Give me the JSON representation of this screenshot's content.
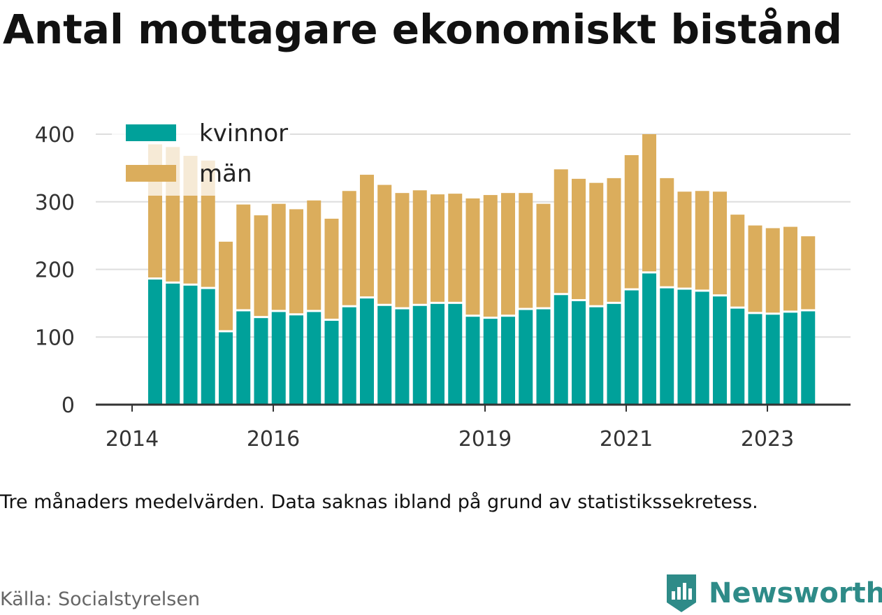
{
  "title": "Antal mottagare ekonomiskt bistånd",
  "note": "Tre månaders medelvärden. Data saknas ibland på grund av statistikssekretess.",
  "source": "Källa: Socialstyrelsen",
  "brand": "Newsworthy",
  "colors": {
    "kvinnor": "#00a19a",
    "man": "#dbad5c",
    "grid": "#dddddd",
    "axis": "#333333"
  },
  "chart_data": {
    "type": "bar",
    "stacked": true,
    "legend": [
      "kvinnor",
      "män"
    ],
    "legend_position": "top-left",
    "grid": true,
    "ylim": [
      0,
      400
    ],
    "yticks": [
      0,
      100,
      200,
      300,
      400
    ],
    "xtick_labels": [
      "2014",
      "2016",
      "2019",
      "2021",
      "2023"
    ],
    "bars": [
      {
        "x": "2014Q2",
        "kvinnor": 185,
        "man": 200
      },
      {
        "x": "2014Q3",
        "kvinnor": 179,
        "man": 202
      },
      {
        "x": "2014Q4",
        "kvinnor": 176,
        "man": 192
      },
      {
        "x": "2015Q1",
        "kvinnor": 171,
        "man": 190
      },
      {
        "x": "2015Q2",
        "kvinnor": 107,
        "man": 134
      },
      {
        "x": "2015Q3",
        "kvinnor": 138,
        "man": 158
      },
      {
        "x": "2015Q4",
        "kvinnor": 128,
        "man": 152
      },
      {
        "x": "2016Q1",
        "kvinnor": 137,
        "man": 160
      },
      {
        "x": "2016Q2",
        "kvinnor": 132,
        "man": 157
      },
      {
        "x": "2016Q3",
        "kvinnor": 137,
        "man": 165
      },
      {
        "x": "2016Q4",
        "kvinnor": 124,
        "man": 151
      },
      {
        "x": "2017Q1",
        "kvinnor": 144,
        "man": 172
      },
      {
        "x": "2017Q2",
        "kvinnor": 157,
        "man": 183
      },
      {
        "x": "2017Q3",
        "kvinnor": 146,
        "man": 179
      },
      {
        "x": "2017Q4",
        "kvinnor": 141,
        "man": 172
      },
      {
        "x": "2018Q1",
        "kvinnor": 146,
        "man": 171
      },
      {
        "x": "2018Q2",
        "kvinnor": 149,
        "man": 162
      },
      {
        "x": "2018Q3",
        "kvinnor": 149,
        "man": 163
      },
      {
        "x": "2018Q4",
        "kvinnor": 130,
        "man": 175
      },
      {
        "x": "2019Q1",
        "kvinnor": 127,
        "man": 183
      },
      {
        "x": "2019Q2",
        "kvinnor": 130,
        "man": 183
      },
      {
        "x": "2019Q3",
        "kvinnor": 140,
        "man": 173
      },
      {
        "x": "2019Q4",
        "kvinnor": 141,
        "man": 156
      },
      {
        "x": "2020Q1",
        "kvinnor": 162,
        "man": 186
      },
      {
        "x": "2020Q2",
        "kvinnor": 153,
        "man": 181
      },
      {
        "x": "2020Q3",
        "kvinnor": 144,
        "man": 184
      },
      {
        "x": "2020Q4",
        "kvinnor": 149,
        "man": 186
      },
      {
        "x": "2021Q1",
        "kvinnor": 169,
        "man": 200
      },
      {
        "x": "2021Q2",
        "kvinnor": 194,
        "man": 206
      },
      {
        "x": "2021Q3",
        "kvinnor": 172,
        "man": 163
      },
      {
        "x": "2021Q4",
        "kvinnor": 170,
        "man": 145
      },
      {
        "x": "2022Q1",
        "kvinnor": 167,
        "man": 149
      },
      {
        "x": "2022Q2",
        "kvinnor": 160,
        "man": 155
      },
      {
        "x": "2022Q3",
        "kvinnor": 142,
        "man": 139
      },
      {
        "x": "2022Q4",
        "kvinnor": 134,
        "man": 131
      },
      {
        "x": "2023Q1",
        "kvinnor": 133,
        "man": 128
      },
      {
        "x": "2023Q2",
        "kvinnor": 136,
        "man": 127
      },
      {
        "x": "2023Q3",
        "kvinnor": 138,
        "man": 111
      }
    ]
  }
}
